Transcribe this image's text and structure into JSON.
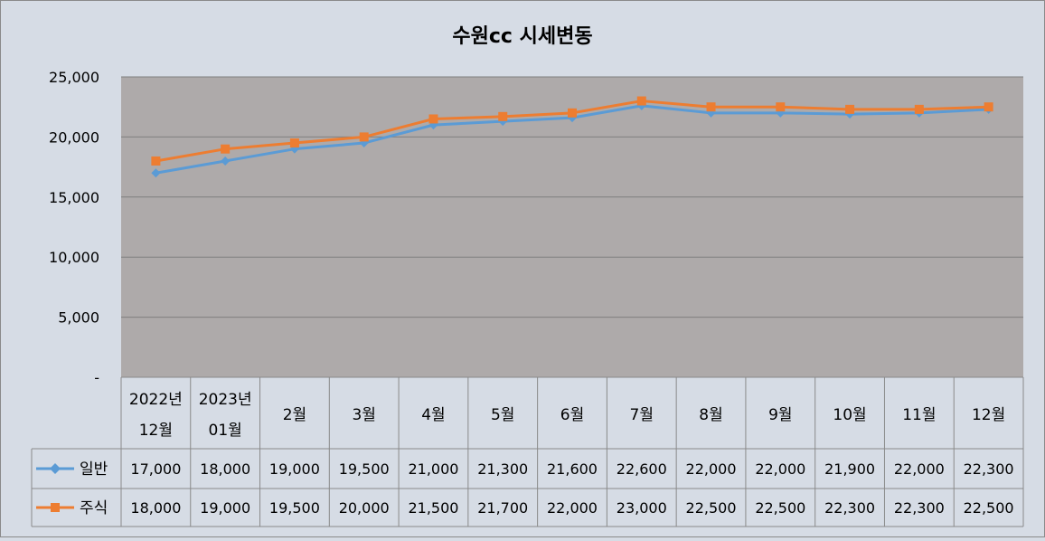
{
  "chart_data": {
    "type": "line",
    "title": "수원cc 시세변동",
    "categories": [
      [
        "2022년",
        "12월"
      ],
      [
        "2023년",
        "01월"
      ],
      [
        "2월"
      ],
      [
        "3월"
      ],
      [
        "4월"
      ],
      [
        "5월"
      ],
      [
        "6월"
      ],
      [
        "7월"
      ],
      [
        "8월"
      ],
      [
        "9월"
      ],
      [
        "10월"
      ],
      [
        "11월"
      ],
      [
        "12월"
      ]
    ],
    "ylim": [
      0,
      25000
    ],
    "yticks": [
      0,
      5000,
      10000,
      15000,
      20000,
      25000
    ],
    "ytick_labels": [
      "-",
      "5,000",
      "10,000",
      "15,000",
      "20,000",
      "25,000"
    ],
    "grid": true,
    "legend": "data-table-left",
    "series": [
      {
        "name": "일반",
        "color": "#5b9bd5",
        "marker": "diamond",
        "values": [
          17000,
          18000,
          19000,
          19500,
          21000,
          21300,
          21600,
          22600,
          22000,
          22000,
          21900,
          22000,
          22300
        ],
        "labels": [
          "17,000",
          "18,000",
          "19,000",
          "19,500",
          "21,000",
          "21,300",
          "21,600",
          "22,600",
          "22,000",
          "22,000",
          "21,900",
          "22,000",
          "22,300"
        ]
      },
      {
        "name": "주식",
        "color": "#ed7d31",
        "marker": "square",
        "values": [
          18000,
          19000,
          19500,
          20000,
          21500,
          21700,
          22000,
          23000,
          22500,
          22500,
          22300,
          22300,
          22500
        ],
        "labels": [
          "18,000",
          "19,000",
          "19,500",
          "20,000",
          "21,500",
          "21,700",
          "22,000",
          "23,000",
          "22,500",
          "22,500",
          "22,300",
          "22,300",
          "22,500"
        ]
      }
    ],
    "colors": {
      "background": "#d6dce5",
      "plot_area": "#aeaaaa",
      "grid": "#7f7f7f",
      "table_border": "#8a8a8a"
    }
  }
}
